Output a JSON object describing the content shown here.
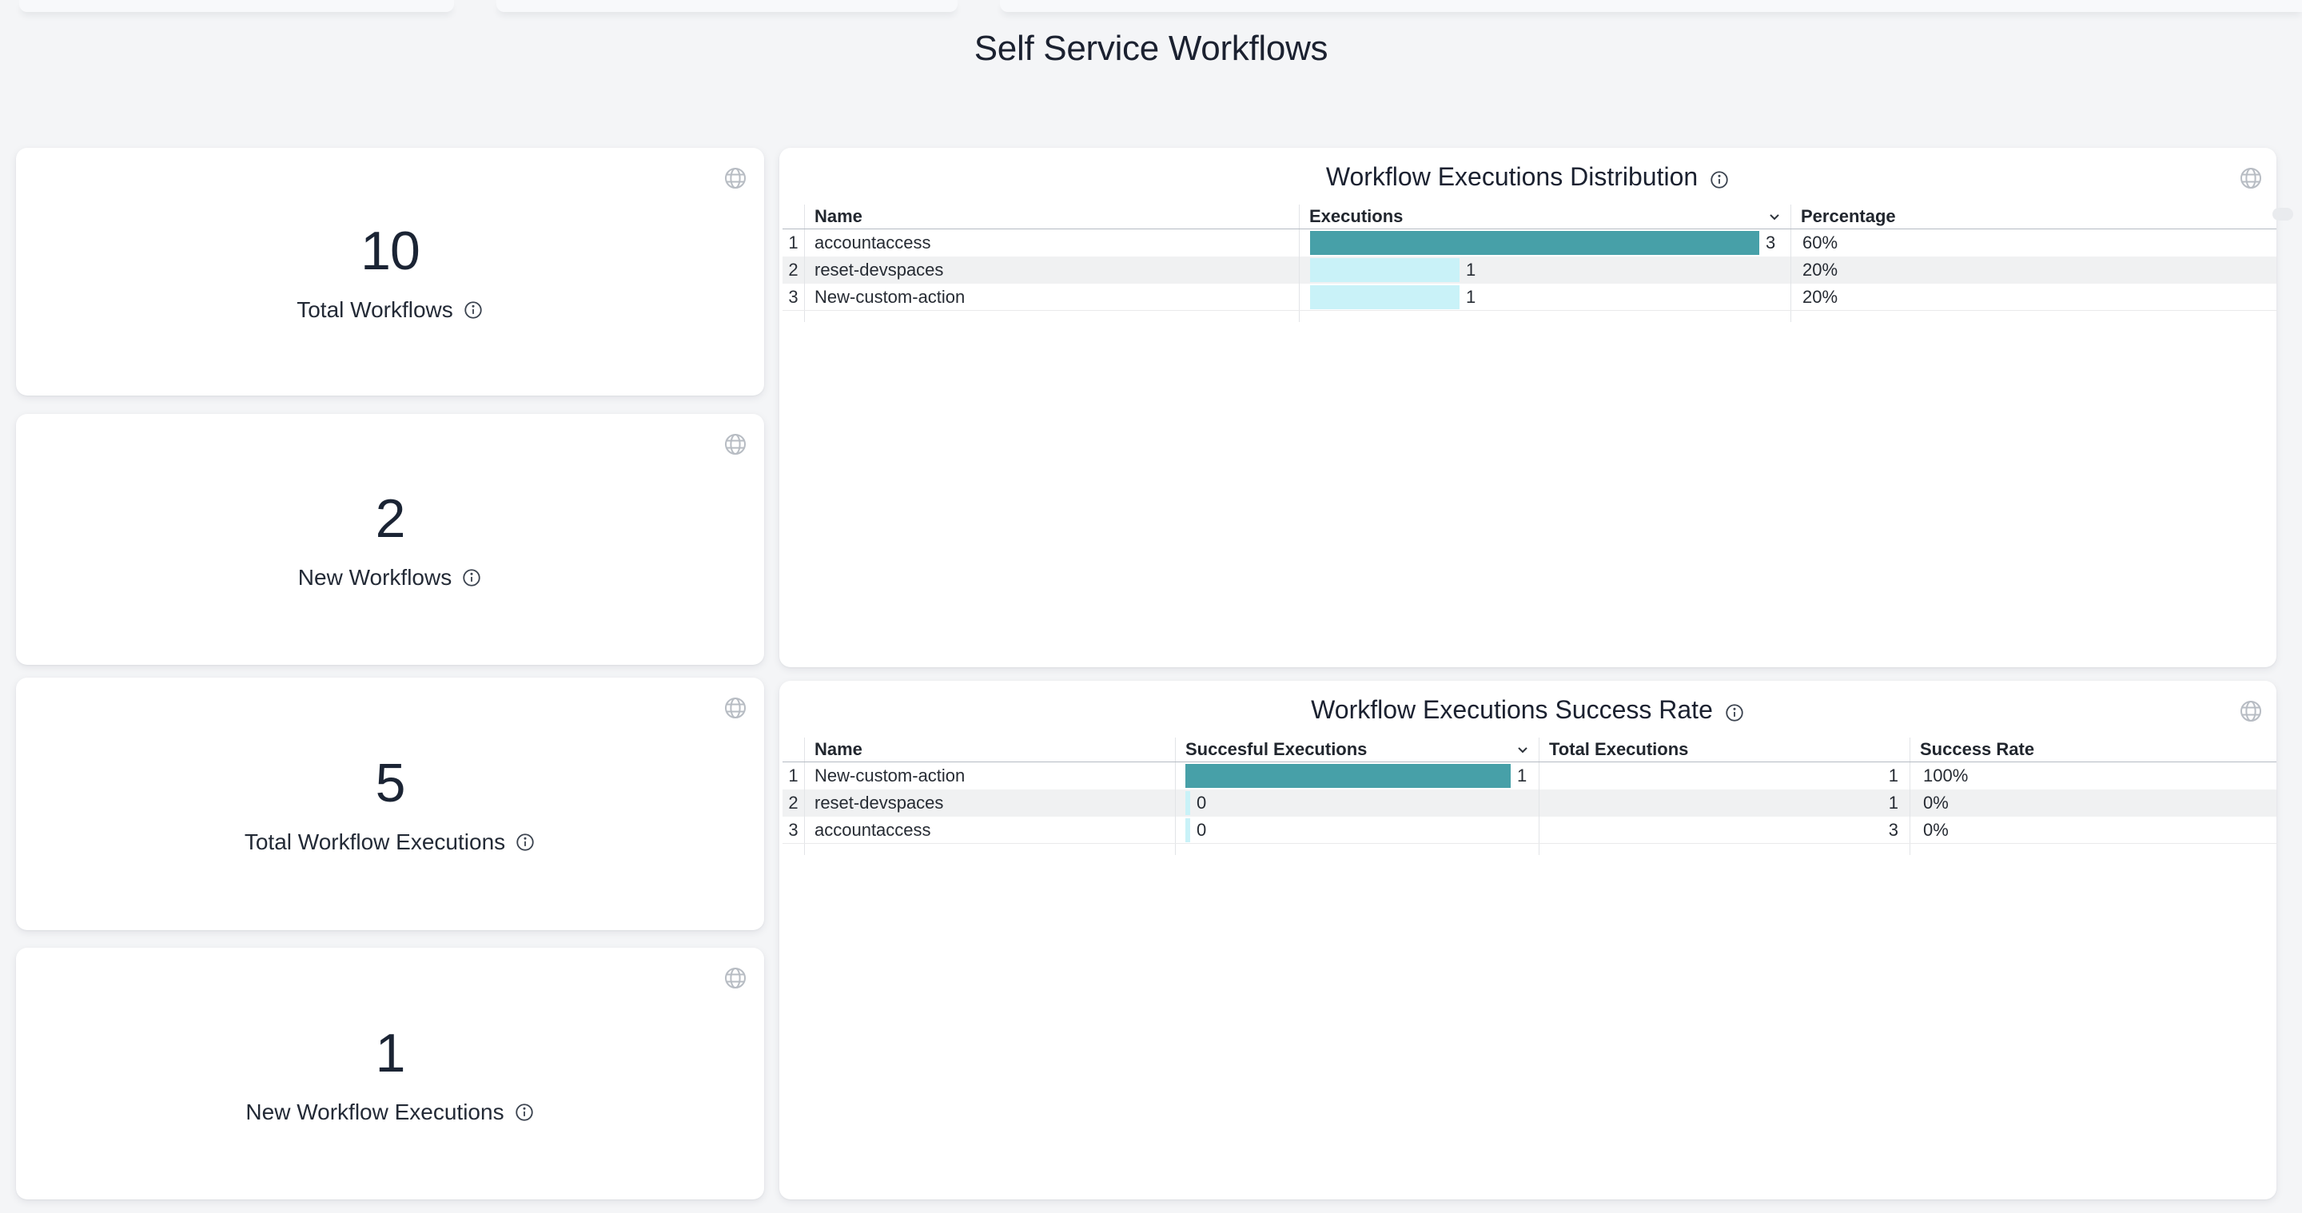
{
  "page": {
    "title": "Self Service Workflows"
  },
  "stats": [
    {
      "value": "10",
      "label": "Total Workflows"
    },
    {
      "value": "2",
      "label": "New Workflows"
    },
    {
      "value": "5",
      "label": "Total Workflow Executions"
    },
    {
      "value": "1",
      "label": "New Workflow Executions"
    }
  ],
  "dist": {
    "title": "Workflow Executions Distribution",
    "columns": [
      "Name",
      "Executions",
      "Percentage"
    ],
    "sorted_column": "Executions",
    "max_value": 3,
    "rows": [
      {
        "i": "1",
        "name": "accountaccess",
        "executions": 3,
        "percentage": "60%"
      },
      {
        "i": "2",
        "name": "reset-devspaces",
        "executions": 1,
        "percentage": "20%"
      },
      {
        "i": "3",
        "name": "New-custom-action",
        "executions": 1,
        "percentage": "20%"
      }
    ]
  },
  "success": {
    "title": "Workflow Executions Success Rate",
    "columns": [
      "Name",
      "Succesful Executions",
      "Total Executions",
      "Success Rate"
    ],
    "sorted_column": "Succesful Executions",
    "max_value": 1,
    "rows": [
      {
        "i": "1",
        "name": "New-custom-action",
        "successful": 1,
        "total": "1",
        "rate": "100%"
      },
      {
        "i": "2",
        "name": "reset-devspaces",
        "successful": 0,
        "total": "1",
        "rate": "0%"
      },
      {
        "i": "3",
        "name": "accountaccess",
        "successful": 0,
        "total": "3",
        "rate": "0%"
      }
    ]
  },
  "colors": {
    "background": "#f4f5f7",
    "card": "#ffffff",
    "title_text": "#1b2130",
    "bar_high": "#47a0a8",
    "bar_low": "#c9f2f8",
    "zebra_row": "#f0f1f2"
  }
}
